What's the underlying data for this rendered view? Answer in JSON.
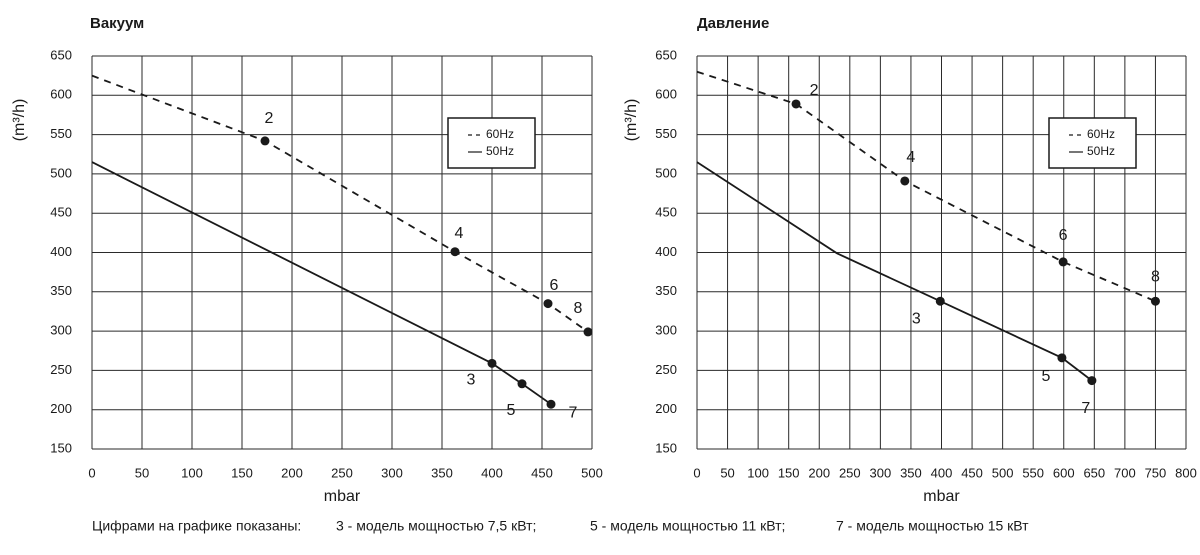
{
  "chart_data": [
    {
      "type": "line",
      "title": "Вакуум",
      "xlabel": "mbar",
      "ylabel": "(m³/h)",
      "xlim": [
        0,
        500
      ],
      "xticks": [
        0,
        50,
        100,
        150,
        200,
        250,
        300,
        350,
        400,
        450,
        500
      ],
      "ylim": [
        150,
        650
      ],
      "yticks": [
        150,
        200,
        250,
        300,
        350,
        400,
        450,
        500,
        550,
        600,
        650
      ],
      "grid": true,
      "legend": "upper right",
      "series": [
        {
          "name": "60Hz",
          "color": "#1a1a1a",
          "line_style": "dashed",
          "x": [
            0,
            173,
            363,
            456,
            496
          ],
          "values": [
            625,
            542,
            401,
            335,
            299
          ],
          "point_labels": [
            null,
            "2",
            "4",
            "6",
            "8"
          ]
        },
        {
          "name": "50Hz",
          "color": "#1a1a1a",
          "line_style": "solid",
          "x": [
            0,
            400,
            430,
            459
          ],
          "values": [
            515,
            259,
            233,
            207
          ],
          "point_labels": [
            null,
            "3",
            "5",
            "7"
          ]
        }
      ]
    },
    {
      "type": "line",
      "title": "Давление",
      "xlabel": "mbar",
      "ylabel": "(m³/h)",
      "xlim": [
        0,
        800
      ],
      "xticks": [
        0,
        50,
        100,
        150,
        200,
        250,
        300,
        350,
        400,
        450,
        500,
        550,
        600,
        650,
        700,
        750,
        800
      ],
      "ylim": [
        150,
        650
      ],
      "yticks": [
        150,
        200,
        250,
        300,
        350,
        400,
        450,
        500,
        550,
        600,
        650
      ],
      "grid": true,
      "legend": "upper right",
      "series": [
        {
          "name": "60Hz",
          "color": "#1a1a1a",
          "line_style": "dashed",
          "x": [
            0,
            162,
            340,
            599,
            750
          ],
          "values": [
            630,
            589,
            491,
            388,
            338
          ],
          "point_labels": [
            null,
            "2",
            "4",
            "6",
            "8"
          ]
        },
        {
          "name": "50Hz",
          "color": "#1a1a1a",
          "line_style": "solid",
          "x": [
            0,
            229,
            398,
            597,
            646
          ],
          "values": [
            515,
            399,
            338,
            266,
            237
          ],
          "point_labels": [
            null,
            null,
            "3",
            "5",
            "7"
          ]
        }
      ]
    }
  ],
  "footer": {
    "intro": "Цифрами на графике показаны:",
    "notes": [
      "3 - модель мощностью 7,5 кВт;",
      "5 - модель мощностью 11 кВт;",
      "7 - модель мощностью 15 кВт"
    ]
  }
}
